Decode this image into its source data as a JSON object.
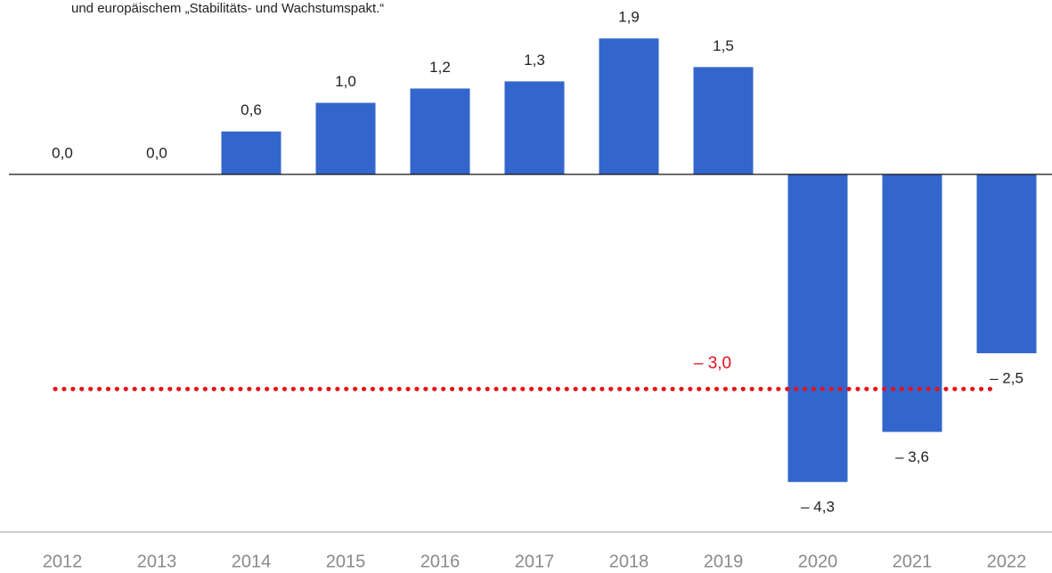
{
  "chart_data": {
    "type": "bar",
    "subtitle": "und europäischem „Stabilitäts- und Wachstumspakt.“",
    "categories": [
      "2012",
      "2013",
      "2014",
      "2015",
      "2016",
      "2017",
      "2018",
      "2019",
      "2020",
      "2021",
      "2022"
    ],
    "values": [
      0.0,
      0.0,
      0.6,
      1.0,
      1.2,
      1.3,
      1.9,
      1.5,
      -4.3,
      -3.6,
      -2.5
    ],
    "value_labels": [
      "0,0",
      "0,0",
      "0,6",
      "1,0",
      "1,2",
      "1,3",
      "1,9",
      "1,5",
      "– 4,3",
      "– 3,6",
      "– 2,5"
    ],
    "color": "#3366cc",
    "ylim": [
      -5,
      2.4
    ],
    "reference_line": {
      "value": -3.0,
      "label": "– 3,0",
      "color": "#e8101a"
    }
  }
}
